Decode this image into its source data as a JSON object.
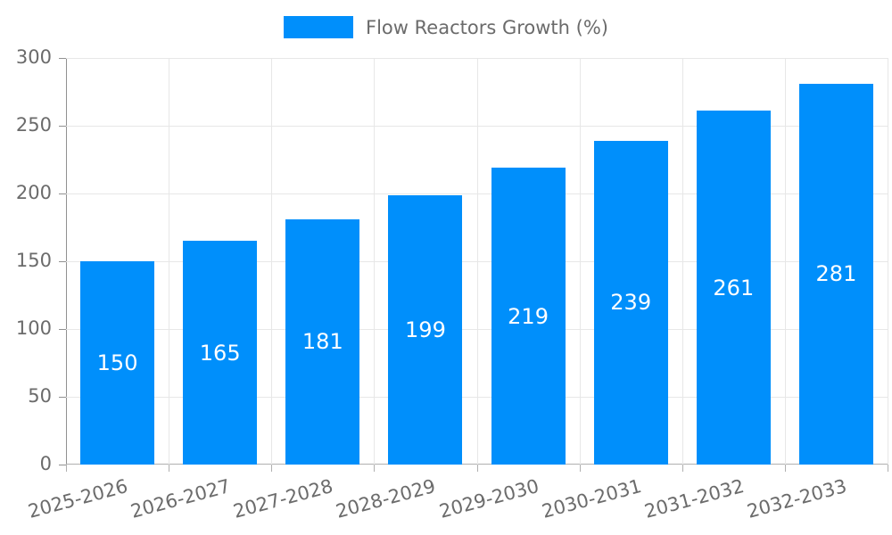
{
  "chart_data": {
    "type": "bar",
    "title": "Flow Reactors Growth (%)",
    "categories": [
      "2025-2026",
      "2026-2027",
      "2027-2028",
      "2028-2029",
      "2029-2030",
      "2030-2031",
      "2031-2032",
      "2032-2033"
    ],
    "values": [
      150,
      165,
      181,
      199,
      219,
      239,
      261,
      281
    ],
    "xlabel": "",
    "ylabel": "",
    "ylim": [
      0,
      300
    ],
    "ytick_step": 50,
    "yticks": [
      0,
      50,
      100,
      150,
      200,
      250,
      300
    ],
    "grid": true,
    "legend_position": "top",
    "bar_color": "#008FFB",
    "value_label_color": "#ffffff",
    "axis_text_color": "#6b6b6b",
    "gridline_color": "#e7e7e7",
    "axis_line_color": "#b0b0b0"
  },
  "legend": {
    "label": "Flow Reactors Growth (%)",
    "swatch_color": "#008FFB"
  }
}
